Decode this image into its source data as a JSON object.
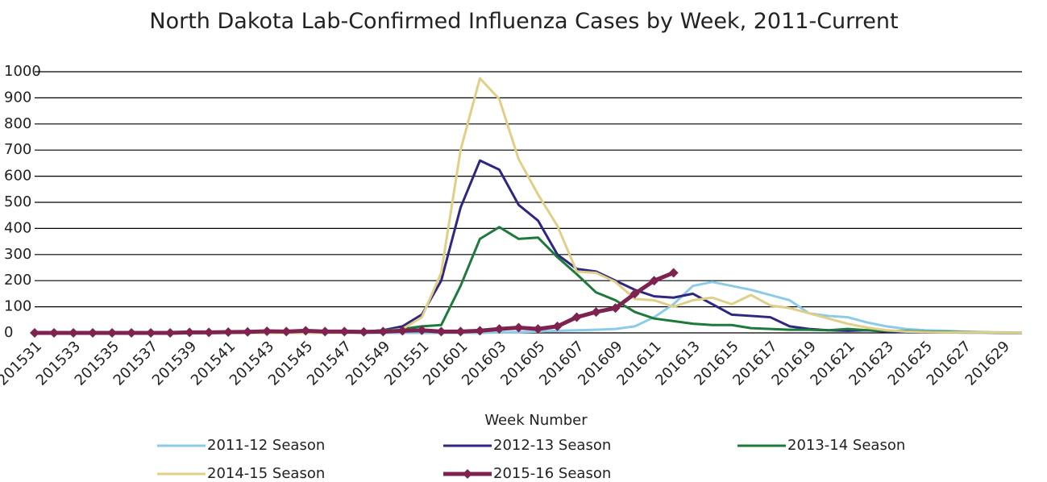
{
  "chart_data": {
    "type": "line",
    "title": "North Dakota Lab-Confirmed Influenza Cases by Week, 2011-Current",
    "x_label": "Week Number",
    "categories": [
      "201531",
      null,
      "201533",
      null,
      "201535",
      null,
      "201537",
      null,
      "201539",
      null,
      "201541",
      null,
      "201543",
      null,
      "201545",
      null,
      "201547",
      null,
      "201549",
      null,
      "201551",
      null,
      "201601",
      null,
      "201603",
      null,
      "201605",
      null,
      "201607",
      null,
      "201609",
      null,
      "201611",
      null,
      "201613",
      null,
      "201615",
      null,
      "201617",
      null,
      "201619",
      null,
      "201621",
      null,
      "201623",
      null,
      "201625",
      null,
      "201627",
      null,
      "201629",
      null
    ],
    "series": [
      {
        "name": "2011-12 Season",
        "color": "#8ccbe8",
        "values": [
          0,
          0,
          0,
          0,
          0,
          0,
          0,
          0,
          0,
          0,
          0,
          0,
          0,
          0,
          0,
          0,
          0,
          0,
          0,
          0,
          0,
          0,
          0,
          0,
          2,
          3,
          5,
          8,
          10,
          12,
          15,
          25,
          60,
          110,
          180,
          195,
          180,
          165,
          145,
          125,
          75,
          65,
          60,
          40,
          25,
          15,
          10,
          8,
          5,
          3,
          2,
          1
        ]
      },
      {
        "name": "2012-13 Season",
        "color": "#2e2683",
        "values": [
          0,
          0,
          0,
          0,
          0,
          0,
          0,
          0,
          0,
          0,
          0,
          0,
          0,
          0,
          0,
          0,
          2,
          5,
          10,
          25,
          70,
          200,
          480,
          660,
          625,
          490,
          430,
          300,
          245,
          235,
          200,
          165,
          140,
          135,
          150,
          110,
          70,
          65,
          60,
          25,
          15,
          10,
          8,
          10,
          5,
          3,
          2,
          2,
          1,
          1,
          0,
          0
        ]
      },
      {
        "name": "2013-14 Season",
        "color": "#1e7a3a",
        "values": [
          0,
          0,
          0,
          0,
          0,
          0,
          0,
          0,
          0,
          0,
          0,
          0,
          0,
          0,
          0,
          0,
          2,
          5,
          10,
          15,
          25,
          30,
          180,
          360,
          405,
          360,
          365,
          290,
          225,
          155,
          125,
          80,
          55,
          45,
          35,
          30,
          30,
          18,
          15,
          12,
          12,
          10,
          15,
          10,
          8,
          7,
          5,
          4,
          3,
          2,
          1,
          1
        ]
      },
      {
        "name": "2014-15 Season",
        "color": "#e0cf87",
        "values": [
          0,
          0,
          0,
          0,
          0,
          0,
          0,
          0,
          0,
          0,
          0,
          0,
          0,
          0,
          0,
          0,
          0,
          2,
          5,
          15,
          60,
          230,
          700,
          975,
          895,
          665,
          530,
          410,
          235,
          230,
          195,
          130,
          125,
          100,
          125,
          135,
          110,
          145,
          105,
          95,
          75,
          55,
          35,
          20,
          10,
          5,
          3,
          2,
          2,
          2,
          1,
          1
        ]
      },
      {
        "name": "2015-16 Season",
        "color": "#7e2350",
        "marker": "diamond",
        "values": [
          0,
          0,
          0,
          0,
          0,
          0,
          0,
          0,
          2,
          2,
          3,
          4,
          6,
          5,
          8,
          5,
          5,
          4,
          5,
          8,
          10,
          5,
          5,
          8,
          15,
          20,
          15,
          25,
          60,
          80,
          95,
          150,
          200,
          230,
          null,
          null,
          null,
          null,
          null,
          null,
          null,
          null,
          null,
          null,
          null,
          null,
          null,
          null,
          null,
          null,
          null,
          null
        ]
      }
    ],
    "ylim": [
      0,
      1000
    ],
    "yticks": [
      0,
      100,
      200,
      300,
      400,
      500,
      600,
      700,
      800,
      900,
      1000
    ],
    "grid": true
  }
}
